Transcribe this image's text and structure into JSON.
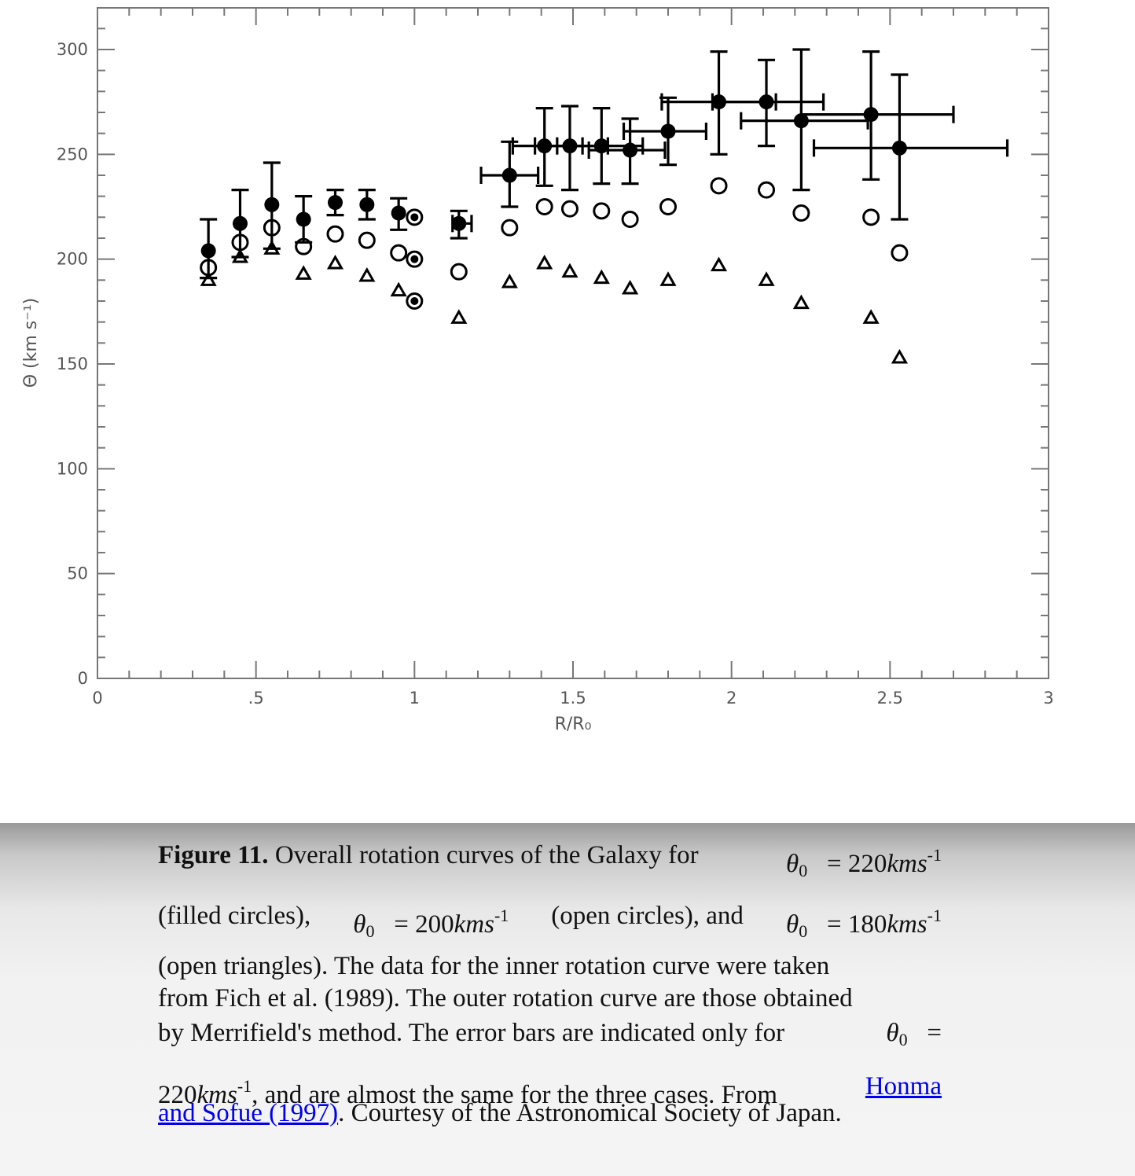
{
  "chart_data": {
    "type": "scatter",
    "xlabel": "R/R₀",
    "ylabel": "Θ (km s⁻¹)",
    "xlim": [
      0,
      3
    ],
    "ylim": [
      0,
      320
    ],
    "x_ticks": [
      "0",
      ".5",
      "1",
      "1.5",
      "2",
      "2.5",
      "3"
    ],
    "y_ticks": [
      "0",
      "50",
      "100",
      "150",
      "200",
      "250",
      "300"
    ],
    "grid": false,
    "legend": "none",
    "series": [
      {
        "marker": "filled-circle",
        "points": [
          {
            "x": 0.35,
            "y": 204,
            "ylo": 191,
            "yhi": 219
          },
          {
            "x": 0.45,
            "y": 217,
            "ylo": 201,
            "yhi": 233
          },
          {
            "x": 0.55,
            "y": 226,
            "ylo": 205,
            "yhi": 246
          },
          {
            "x": 0.65,
            "y": 219,
            "ylo": 208,
            "yhi": 230
          },
          {
            "x": 0.75,
            "y": 227,
            "ylo": 221,
            "yhi": 233
          },
          {
            "x": 0.85,
            "y": 226,
            "ylo": 219,
            "yhi": 233
          },
          {
            "x": 0.95,
            "y": 222,
            "ylo": 214,
            "yhi": 229
          },
          {
            "x": 1.14,
            "y": 217,
            "ylo": 210,
            "yhi": 223,
            "xlo": 1.12,
            "xhi": 1.18
          },
          {
            "x": 1.3,
            "y": 240,
            "ylo": 225,
            "yhi": 256,
            "xlo": 1.21,
            "xhi": 1.39
          },
          {
            "x": 1.41,
            "y": 254,
            "ylo": 235,
            "yhi": 272,
            "xlo": 1.31,
            "xhi": 1.53
          },
          {
            "x": 1.49,
            "y": 254,
            "ylo": 233,
            "yhi": 273,
            "xlo": 1.38,
            "xhi": 1.61
          },
          {
            "x": 1.59,
            "y": 254,
            "ylo": 236,
            "yhi": 272,
            "xlo": 1.45,
            "xhi": 1.72
          },
          {
            "x": 1.68,
            "y": 252,
            "ylo": 236,
            "yhi": 267,
            "xlo": 1.55,
            "xhi": 1.79
          },
          {
            "x": 1.8,
            "y": 261,
            "ylo": 245,
            "yhi": 277,
            "xlo": 1.66,
            "xhi": 1.92
          },
          {
            "x": 1.96,
            "y": 275,
            "ylo": 250,
            "yhi": 299,
            "xlo": 1.78,
            "xhi": 2.14
          },
          {
            "x": 2.11,
            "y": 275,
            "ylo": 254,
            "yhi": 295,
            "xlo": 1.94,
            "xhi": 2.29
          },
          {
            "x": 2.22,
            "y": 266,
            "ylo": 233,
            "yhi": 300,
            "xlo": 2.03,
            "xhi": 2.43
          },
          {
            "x": 2.44,
            "y": 269,
            "ylo": 238,
            "yhi": 299,
            "xlo": 2.22,
            "xhi": 2.7
          },
          {
            "x": 2.53,
            "y": 253,
            "ylo": 219,
            "yhi": 288,
            "xlo": 2.26,
            "xhi": 2.87
          }
        ]
      },
      {
        "marker": "open-circle",
        "points": [
          {
            "x": 0.35,
            "y": 196
          },
          {
            "x": 0.45,
            "y": 208
          },
          {
            "x": 0.55,
            "y": 215
          },
          {
            "x": 0.65,
            "y": 206
          },
          {
            "x": 0.75,
            "y": 212
          },
          {
            "x": 0.85,
            "y": 209
          },
          {
            "x": 0.95,
            "y": 203
          },
          {
            "x": 1.0,
            "y": 220
          },
          {
            "x": 1.0,
            "y": 200
          },
          {
            "x": 1.0,
            "y": 180
          },
          {
            "x": 1.14,
            "y": 194
          },
          {
            "x": 1.3,
            "y": 215
          },
          {
            "x": 1.41,
            "y": 225
          },
          {
            "x": 1.49,
            "y": 224
          },
          {
            "x": 1.59,
            "y": 223
          },
          {
            "x": 1.68,
            "y": 219
          },
          {
            "x": 1.8,
            "y": 225
          },
          {
            "x": 1.96,
            "y": 235
          },
          {
            "x": 2.11,
            "y": 233
          },
          {
            "x": 2.22,
            "y": 222
          },
          {
            "x": 2.44,
            "y": 220
          },
          {
            "x": 2.53,
            "y": 203
          }
        ]
      },
      {
        "marker": "open-triangle",
        "points": [
          {
            "x": 0.35,
            "y": 190
          },
          {
            "x": 0.45,
            "y": 201
          },
          {
            "x": 0.55,
            "y": 205
          },
          {
            "x": 0.65,
            "y": 193
          },
          {
            "x": 0.75,
            "y": 198
          },
          {
            "x": 0.85,
            "y": 192
          },
          {
            "x": 0.95,
            "y": 185
          },
          {
            "x": 1.14,
            "y": 172
          },
          {
            "x": 1.3,
            "y": 189
          },
          {
            "x": 1.41,
            "y": 198
          },
          {
            "x": 1.49,
            "y": 194
          },
          {
            "x": 1.59,
            "y": 191
          },
          {
            "x": 1.68,
            "y": 186
          },
          {
            "x": 1.8,
            "y": 190
          },
          {
            "x": 1.96,
            "y": 197
          },
          {
            "x": 2.11,
            "y": 190
          },
          {
            "x": 2.22,
            "y": 179
          },
          {
            "x": 2.44,
            "y": 172
          },
          {
            "x": 2.53,
            "y": 153
          }
        ]
      },
      {
        "marker": "dotted-circle",
        "points": [
          {
            "x": 1.0,
            "y": 220
          },
          {
            "x": 1.0,
            "y": 200
          },
          {
            "x": 1.0,
            "y": 180
          }
        ]
      }
    ]
  },
  "caption": {
    "label": "Figure 11.",
    "theta": "θ",
    "sub0": "0",
    "eq": "=",
    "kms": "kms",
    "sup": "-1",
    "l1_text": "Overall rotation curves of the Galaxy for",
    "v220": "220",
    "v200": "200",
    "v180": "180",
    "filled": "(filled circles),",
    "open_circles": "(open circles), and",
    "l3": "(open triangles). The data for the inner rotation curve were taken",
    "l4": "from Fich et al. (1989). The outer rotation curve are those obtained",
    "l5": "by Merrifield's method. The error bars are indicated only for",
    "l6_rest": ", and are almost the same for the three cases. From",
    "link1": "Honma",
    "link2": "and Sofue (1997)",
    "l7_rest": ". Courtesy of the Astronomical Society of Japan."
  }
}
